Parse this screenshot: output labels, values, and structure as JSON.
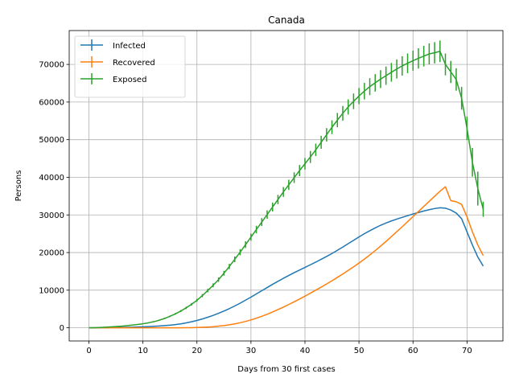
{
  "chart_data": {
    "type": "line",
    "title": "Canada",
    "xlabel": "Days from 30 first cases",
    "ylabel": "Persons",
    "xlim": [
      -3.65,
      76.65
    ],
    "ylim": [
      -3500,
      79000
    ],
    "xticks": [
      0,
      10,
      20,
      30,
      40,
      50,
      60,
      70
    ],
    "yticks": [
      0,
      10000,
      20000,
      30000,
      40000,
      50000,
      60000,
      70000
    ],
    "grid": true,
    "legend": "top-left",
    "error_bars": true,
    "x": [
      0,
      1,
      2,
      3,
      4,
      5,
      6,
      7,
      8,
      9,
      10,
      11,
      12,
      13,
      14,
      15,
      16,
      17,
      18,
      19,
      20,
      21,
      22,
      23,
      24,
      25,
      26,
      27,
      28,
      29,
      30,
      31,
      32,
      33,
      34,
      35,
      36,
      37,
      38,
      39,
      40,
      41,
      42,
      43,
      44,
      45,
      46,
      47,
      48,
      49,
      50,
      51,
      52,
      53,
      54,
      55,
      56,
      57,
      58,
      59,
      60,
      61,
      62,
      63,
      64,
      65,
      66,
      67,
      68,
      69,
      70,
      71,
      72,
      73
    ],
    "series": [
      {
        "name": "Infected",
        "color": "#1f77b4",
        "values": [
          0,
          10,
          20,
          35,
          55,
          75,
          100,
          130,
          170,
          215,
          270,
          330,
          400,
          480,
          580,
          700,
          850,
          1050,
          1300,
          1600,
          1950,
          2350,
          2800,
          3300,
          3850,
          4450,
          5100,
          5800,
          6550,
          7350,
          8150,
          9000,
          9850,
          10700,
          11550,
          12350,
          13150,
          13900,
          14650,
          15350,
          16050,
          16750,
          17450,
          18200,
          18950,
          19750,
          20600,
          21450,
          22350,
          23250,
          24150,
          25000,
          25800,
          26550,
          27250,
          27850,
          28400,
          28900,
          29350,
          29800,
          30250,
          30650,
          31050,
          31400,
          31700,
          31900,
          31800,
          31300,
          30500,
          29000,
          25500,
          22000,
          18800,
          16400
        ],
        "errors": []
      },
      {
        "name": "Recovered",
        "color": "#ff7f0e",
        "values": [
          0,
          0,
          0,
          0,
          0,
          0,
          0,
          0,
          0,
          0,
          0,
          0,
          0,
          0,
          0,
          0,
          0,
          10,
          20,
          40,
          80,
          130,
          200,
          300,
          450,
          600,
          800,
          1050,
          1350,
          1700,
          2100,
          2550,
          3050,
          3600,
          4200,
          4850,
          5500,
          6200,
          6900,
          7650,
          8400,
          9200,
          10000,
          10800,
          11650,
          12500,
          13400,
          14300,
          15250,
          16200,
          17200,
          18250,
          19350,
          20500,
          21700,
          22950,
          24250,
          25550,
          26850,
          28200,
          29550,
          30900,
          32250,
          33600,
          34950,
          36300,
          37500,
          33800,
          33500,
          32800,
          29500,
          25500,
          22000,
          19200
        ],
        "errors": []
      },
      {
        "name": "Exposed",
        "color": "#2ca02c",
        "values": [
          0,
          40,
          90,
          150,
          230,
          320,
          430,
          560,
          710,
          880,
          1080,
          1320,
          1620,
          2000,
          2480,
          3050,
          3700,
          4450,
          5300,
          6250,
          7300,
          8550,
          9900,
          11300,
          12800,
          14500,
          16300,
          18200,
          20100,
          22100,
          24100,
          26100,
          28100,
          30100,
          32100,
          34100,
          36100,
          38000,
          39900,
          41800,
          43600,
          45400,
          47300,
          49300,
          51300,
          53300,
          55200,
          57000,
          58700,
          60200,
          61600,
          62900,
          64100,
          65100,
          66100,
          67000,
          67900,
          68800,
          69600,
          70300,
          71000,
          71600,
          72200,
          72800,
          73100,
          73500,
          70000,
          68000,
          66000,
          61000,
          53000,
          44000,
          37000,
          31500
        ],
        "errors": [
          0,
          10,
          20,
          30,
          40,
          50,
          60,
          70,
          80,
          90,
          100,
          120,
          140,
          160,
          180,
          200,
          220,
          260,
          300,
          340,
          380,
          420,
          460,
          520,
          580,
          640,
          700,
          760,
          820,
          880,
          940,
          1000,
          1060,
          1120,
          1180,
          1240,
          1300,
          1360,
          1420,
          1480,
          1540,
          1600,
          1660,
          1720,
          1780,
          1840,
          1900,
          1960,
          2020,
          2080,
          2140,
          2200,
          2260,
          2320,
          2380,
          2440,
          2500,
          2540,
          2580,
          2620,
          2660,
          2700,
          2740,
          2780,
          2820,
          2860,
          2900,
          2940,
          2980,
          3020,
          3100,
          3800,
          4500,
          2000
        ]
      }
    ]
  }
}
